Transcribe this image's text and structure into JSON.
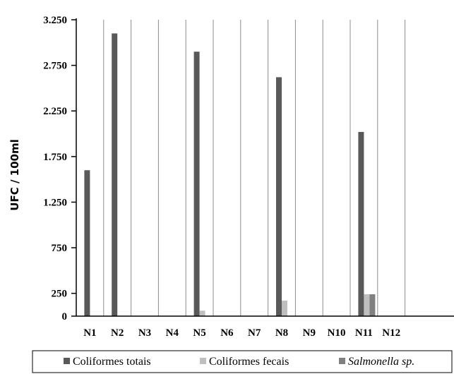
{
  "chart_data": {
    "type": "bar",
    "title": "",
    "xlabel": "",
    "ylabel": "UFC / 100ml",
    "categories": [
      "N1",
      "N2",
      "N3",
      "N4",
      "N5",
      "N6",
      "N7",
      "N8",
      "N9",
      "N10",
      "N11",
      "N12"
    ],
    "series": [
      {
        "name": "Coliformes totais",
        "color": "#595959",
        "values": [
          1600,
          3100,
          0,
          0,
          2900,
          0,
          0,
          2620,
          0,
          0,
          2020,
          0
        ]
      },
      {
        "name": "Coliformes fecais",
        "color": "#bfbfbf",
        "values": [
          0,
          0,
          0,
          0,
          60,
          0,
          0,
          170,
          0,
          0,
          240,
          0
        ]
      },
      {
        "name": "Salmonella sp.",
        "color": "#808080",
        "values": [
          0,
          0,
          0,
          0,
          0,
          0,
          0,
          0,
          0,
          0,
          240,
          0
        ]
      }
    ],
    "yticks": [
      0,
      250,
      750,
      1250,
      1750,
      2250,
      2750,
      3250
    ],
    "ytick_labels": [
      "0",
      "250",
      "750",
      "1.250",
      "1.750",
      "2.250",
      "2.750",
      "3.250"
    ],
    "ylim": [
      0,
      3250
    ],
    "grid": "vertical",
    "legend_position": "bottom"
  }
}
